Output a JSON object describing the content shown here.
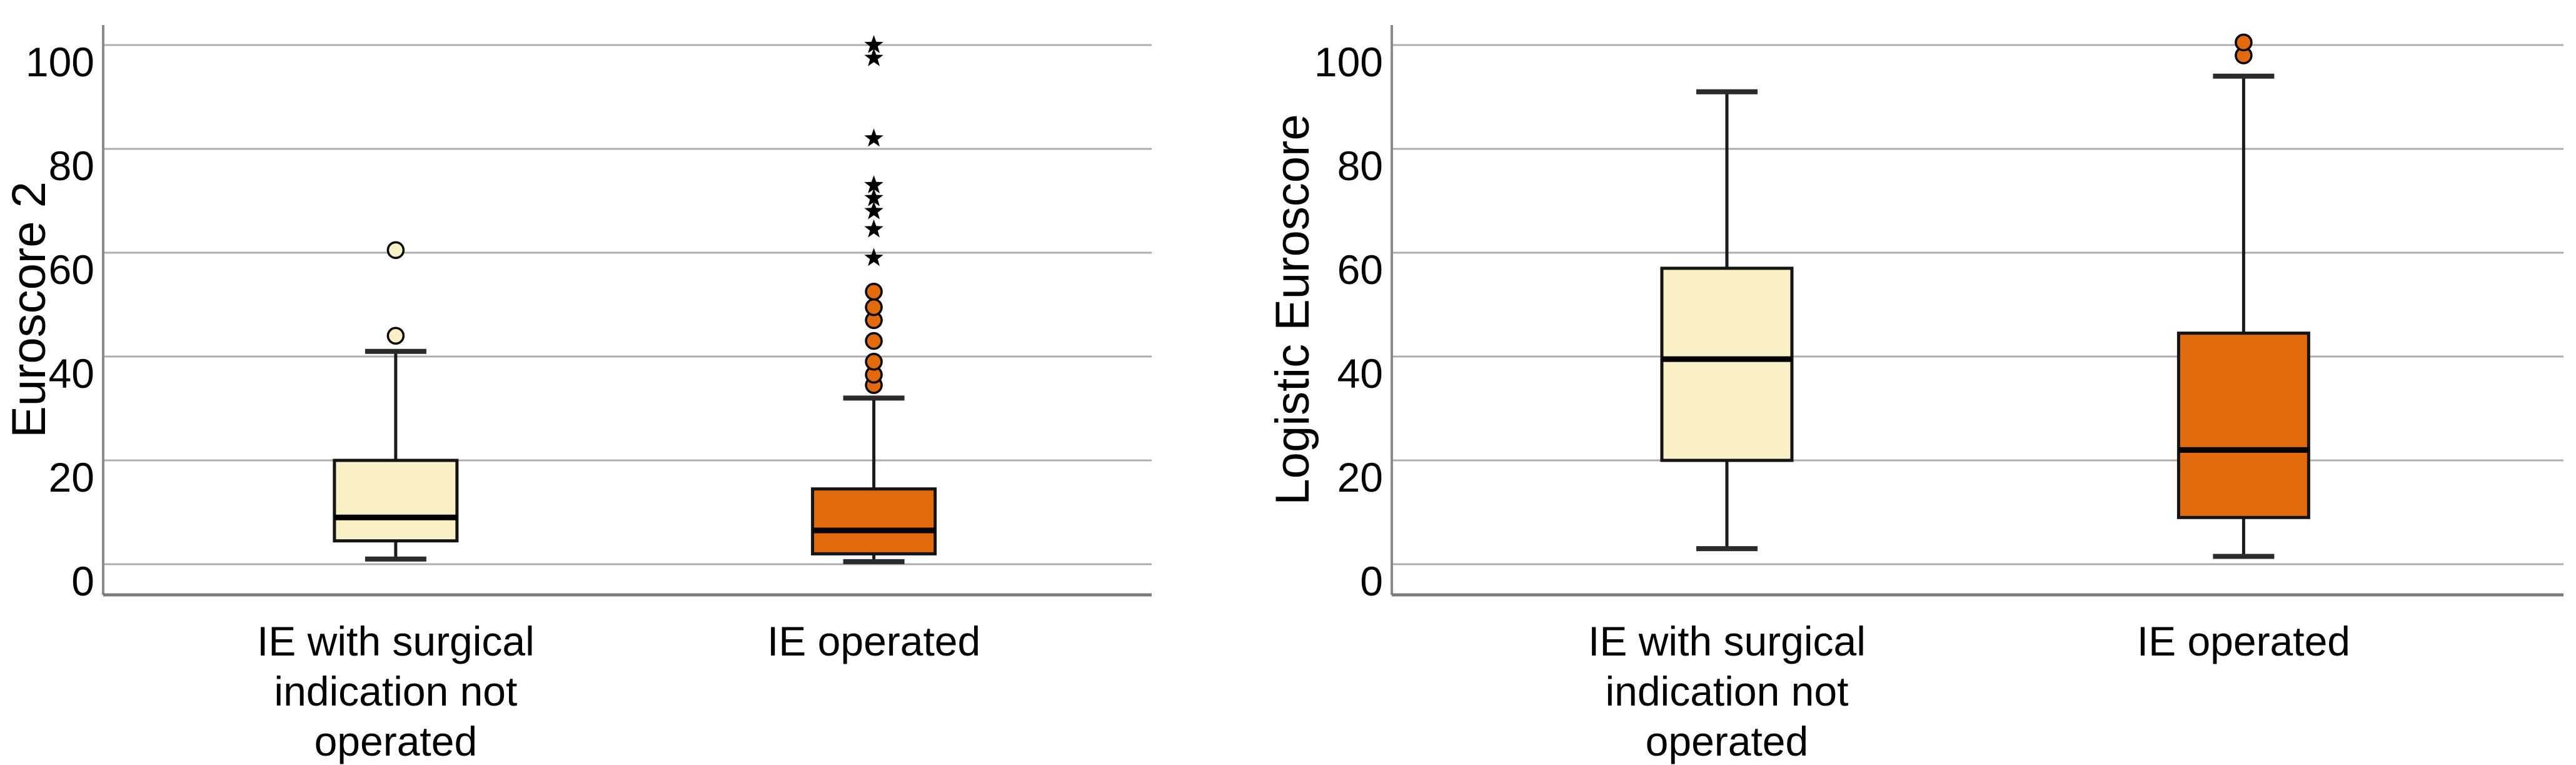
{
  "figure": {
    "background": "#ffffff",
    "description_colors": {
      "group1_fill": "#FAF0C6",
      "group2_fill": "#E26A0B",
      "gridline": "#ACACAC",
      "axis_line": "#8B8B8B",
      "frame_line": "#7C7C7C",
      "box_stroke": "#141414"
    }
  },
  "chart_data": [
    {
      "type": "boxplot",
      "title": "",
      "ylabel": "Euroscore 2",
      "xlabel": "",
      "ylim": [
        0,
        100
      ],
      "yticks": [
        0,
        20,
        40,
        60,
        80,
        100
      ],
      "grid": "horizontal",
      "legend": "none",
      "categories": [
        [
          "IE with surgical",
          "indication not",
          "operated"
        ],
        [
          "IE operated"
        ]
      ],
      "series": [
        {
          "name": "IE with surgical indication not operated",
          "color": "#FAF0C6",
          "whisker_low": 1,
          "q1": 4.5,
          "median": 9,
          "q3": 20,
          "whisker_high": 41,
          "outliers_circles": [
            44,
            60.5
          ],
          "outliers_stars": []
        },
        {
          "name": "IE operated",
          "color": "#E26A0B",
          "whisker_low": 0.5,
          "q1": 2,
          "median": 6.5,
          "q3": 14.5,
          "whisker_high": 32,
          "outliers_circles": [
            34.5,
            36.5,
            39,
            43,
            47,
            49.5,
            52.5
          ],
          "outliers_stars": [
            59,
            64.5,
            68,
            70.5,
            73,
            82,
            97.5,
            100
          ]
        }
      ]
    },
    {
      "type": "boxplot",
      "title": "",
      "ylabel": "Logistic Euroscore",
      "xlabel": "",
      "ylim": [
        0,
        100
      ],
      "yticks": [
        0,
        20,
        40,
        60,
        80,
        100
      ],
      "grid": "horizontal",
      "legend": "none",
      "categories": [
        [
          "IE with surgical",
          "indication not",
          "operated"
        ],
        [
          "IE operated"
        ]
      ],
      "series": [
        {
          "name": "IE with surgical indication not operated",
          "color": "#FAF0C6",
          "whisker_low": 3,
          "q1": 20,
          "median": 39.5,
          "q3": 57,
          "whisker_high": 91,
          "outliers_circles": [],
          "outliers_stars": []
        },
        {
          "name": "IE operated",
          "color": "#E26A0B",
          "whisker_low": 1.5,
          "q1": 9,
          "median": 22,
          "q3": 44.5,
          "whisker_high": 94,
          "outliers_circles": [
            98,
            100.5
          ],
          "outliers_stars": []
        }
      ]
    }
  ]
}
